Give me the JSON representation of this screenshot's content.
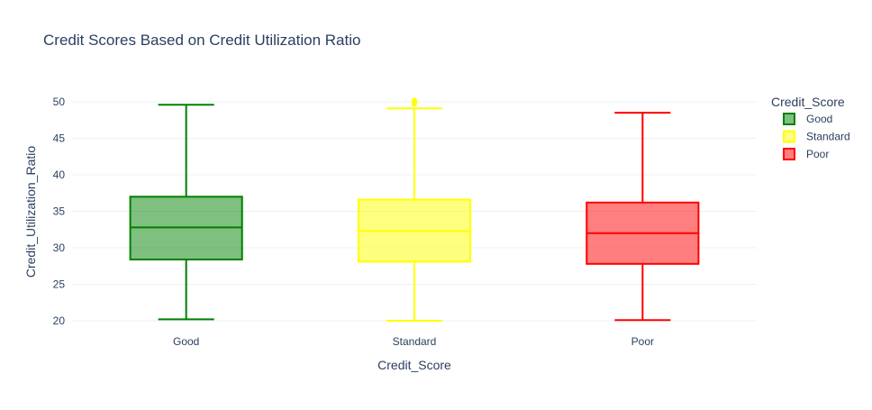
{
  "chart_data": {
    "type": "box",
    "title": "Credit Scores Based on Credit Utilization Ratio",
    "xlabel": "Credit_Score",
    "ylabel": "Credit_Utilization_Ratio",
    "ylim": [
      19.5,
      51.2
    ],
    "yticks": [
      20,
      25,
      30,
      35,
      40,
      45,
      50
    ],
    "grid": true,
    "categories": [
      "Good",
      "Standard",
      "Poor"
    ],
    "legend": {
      "title": "Credit_Score",
      "position": "right",
      "entries": [
        "Good",
        "Standard",
        "Poor"
      ]
    },
    "series": [
      {
        "name": "Good",
        "color": "#008000",
        "fill": "rgba(0,128,0,0.5)",
        "min": 20.2,
        "q1": 28.4,
        "median": 32.8,
        "q3": 37.0,
        "max": 49.6,
        "outliers": []
      },
      {
        "name": "Standard",
        "color": "#ffff00",
        "fill": "rgba(255,255,0,0.5)",
        "min": 20.0,
        "q1": 28.1,
        "median": 32.3,
        "q3": 36.6,
        "max": 49.1,
        "outliers": [
          49.7,
          49.9,
          50.0,
          50.1,
          50.2
        ]
      },
      {
        "name": "Poor",
        "color": "#ff0000",
        "fill": "rgba(255,0,0,0.5)",
        "min": 20.1,
        "q1": 27.8,
        "median": 32.0,
        "q3": 36.2,
        "max": 48.5,
        "outliers": []
      }
    ]
  }
}
